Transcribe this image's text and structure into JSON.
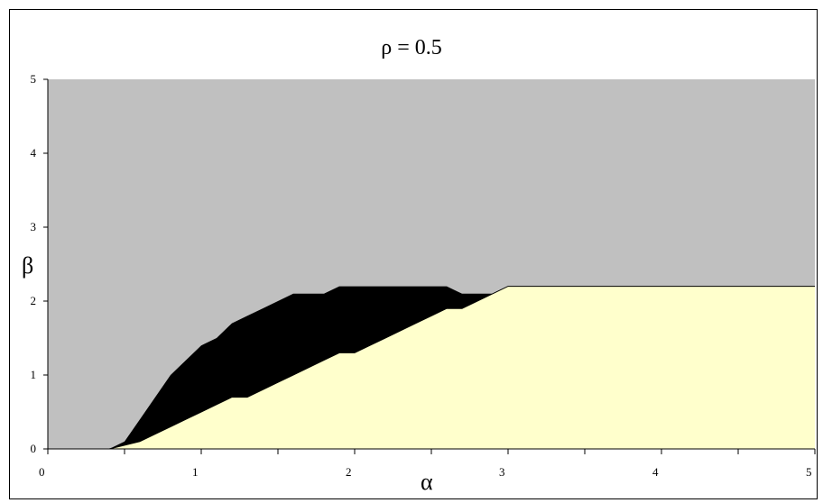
{
  "chart_data": {
    "type": "area",
    "title": "ρ = 0.5",
    "xlabel": "α",
    "ylabel": "β",
    "xlim": [
      0,
      5
    ],
    "ylim": [
      0,
      5
    ],
    "xticks": [
      0,
      1,
      2,
      3,
      4,
      5
    ],
    "yticks": [
      0,
      1,
      2,
      3,
      4,
      5
    ],
    "grid": false,
    "colors": {
      "upper_region": "#c0c0c0",
      "middle_region": "#000000",
      "lower_region": "#ffffcc"
    },
    "series": [
      {
        "x": [
          0,
          0.4,
          0.5,
          0.6,
          0.7,
          0.8,
          0.9,
          1.0,
          1.1,
          1.2,
          1.3,
          1.4,
          1.5,
          1.6,
          1.7,
          1.8,
          1.9,
          2.0,
          2.1,
          2.2,
          2.3,
          2.4,
          2.5,
          2.6,
          2.7,
          2.8,
          2.9,
          3.0,
          5.0
        ],
        "values": [
          0,
          0,
          0.1,
          0.4,
          0.7,
          1.0,
          1.2,
          1.4,
          1.5,
          1.7,
          1.8,
          1.9,
          2.0,
          2.1,
          2.1,
          2.1,
          2.2,
          2.2,
          2.2,
          2.2,
          2.2,
          2.2,
          2.2,
          2.2,
          2.1,
          2.1,
          2.1,
          2.2,
          2.2
        ]
      },
      {
        "x": [
          0,
          0.4,
          0.6,
          0.7,
          0.8,
          0.9,
          1.0,
          1.1,
          1.2,
          1.3,
          1.4,
          1.5,
          1.6,
          1.7,
          1.8,
          1.9,
          2.0,
          2.1,
          2.2,
          2.3,
          2.4,
          2.5,
          2.6,
          2.7,
          2.8,
          2.9,
          3.0,
          5.0
        ],
        "values": [
          0,
          0,
          0.1,
          0.2,
          0.3,
          0.4,
          0.5,
          0.6,
          0.7,
          0.7,
          0.8,
          0.9,
          1.0,
          1.1,
          1.2,
          1.3,
          1.3,
          1.4,
          1.5,
          1.6,
          1.7,
          1.8,
          1.9,
          1.9,
          2.0,
          2.1,
          2.2,
          2.2
        ]
      }
    ]
  }
}
